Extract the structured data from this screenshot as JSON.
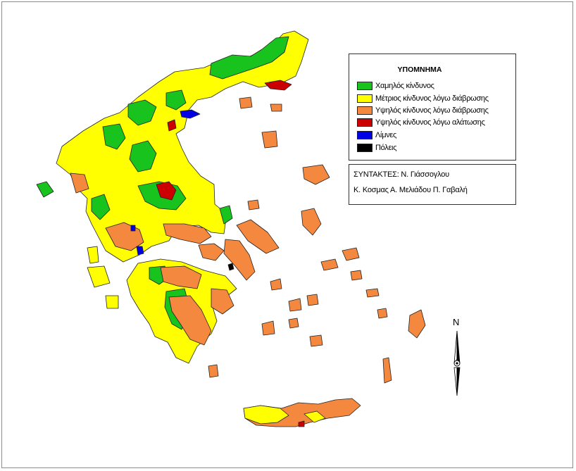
{
  "legend": {
    "title": "ΥΠΟΜΝΗΜΑ",
    "items": [
      {
        "label": "Χαμηλός κίνδυνος",
        "color": "#19c31e"
      },
      {
        "label": "Μέτριος κίνδυνος λόγω διάβρωσης",
        "color": "#ffff00"
      },
      {
        "label": "Υψηλός κίνδυνος λόγω διάβρωσης",
        "color": "#f5883f"
      },
      {
        "label": "Υψηλός κίνδυνος λόγω αλάτωσης",
        "color": "#cc0000"
      },
      {
        "label": "Λίμνες",
        "color": "#0000e6"
      },
      {
        "label": "Πόλεις",
        "color": "#000000"
      }
    ]
  },
  "credits": {
    "line1": "ΣΥΝΤΑΚΤΕΣ:  Ν. Γιάσσογλου",
    "line2": "Κ. Κοσμας  Α. Μελιάδου  Π. Γαβαλή"
  },
  "north_arrow": {
    "label": "N"
  },
  "colors": {
    "low": "#19c31e",
    "medium": "#ffff00",
    "high_erosion": "#f5883f",
    "high_salinity": "#cc0000",
    "lakes": "#0000e6",
    "cities": "#000000",
    "border": "#222222"
  }
}
